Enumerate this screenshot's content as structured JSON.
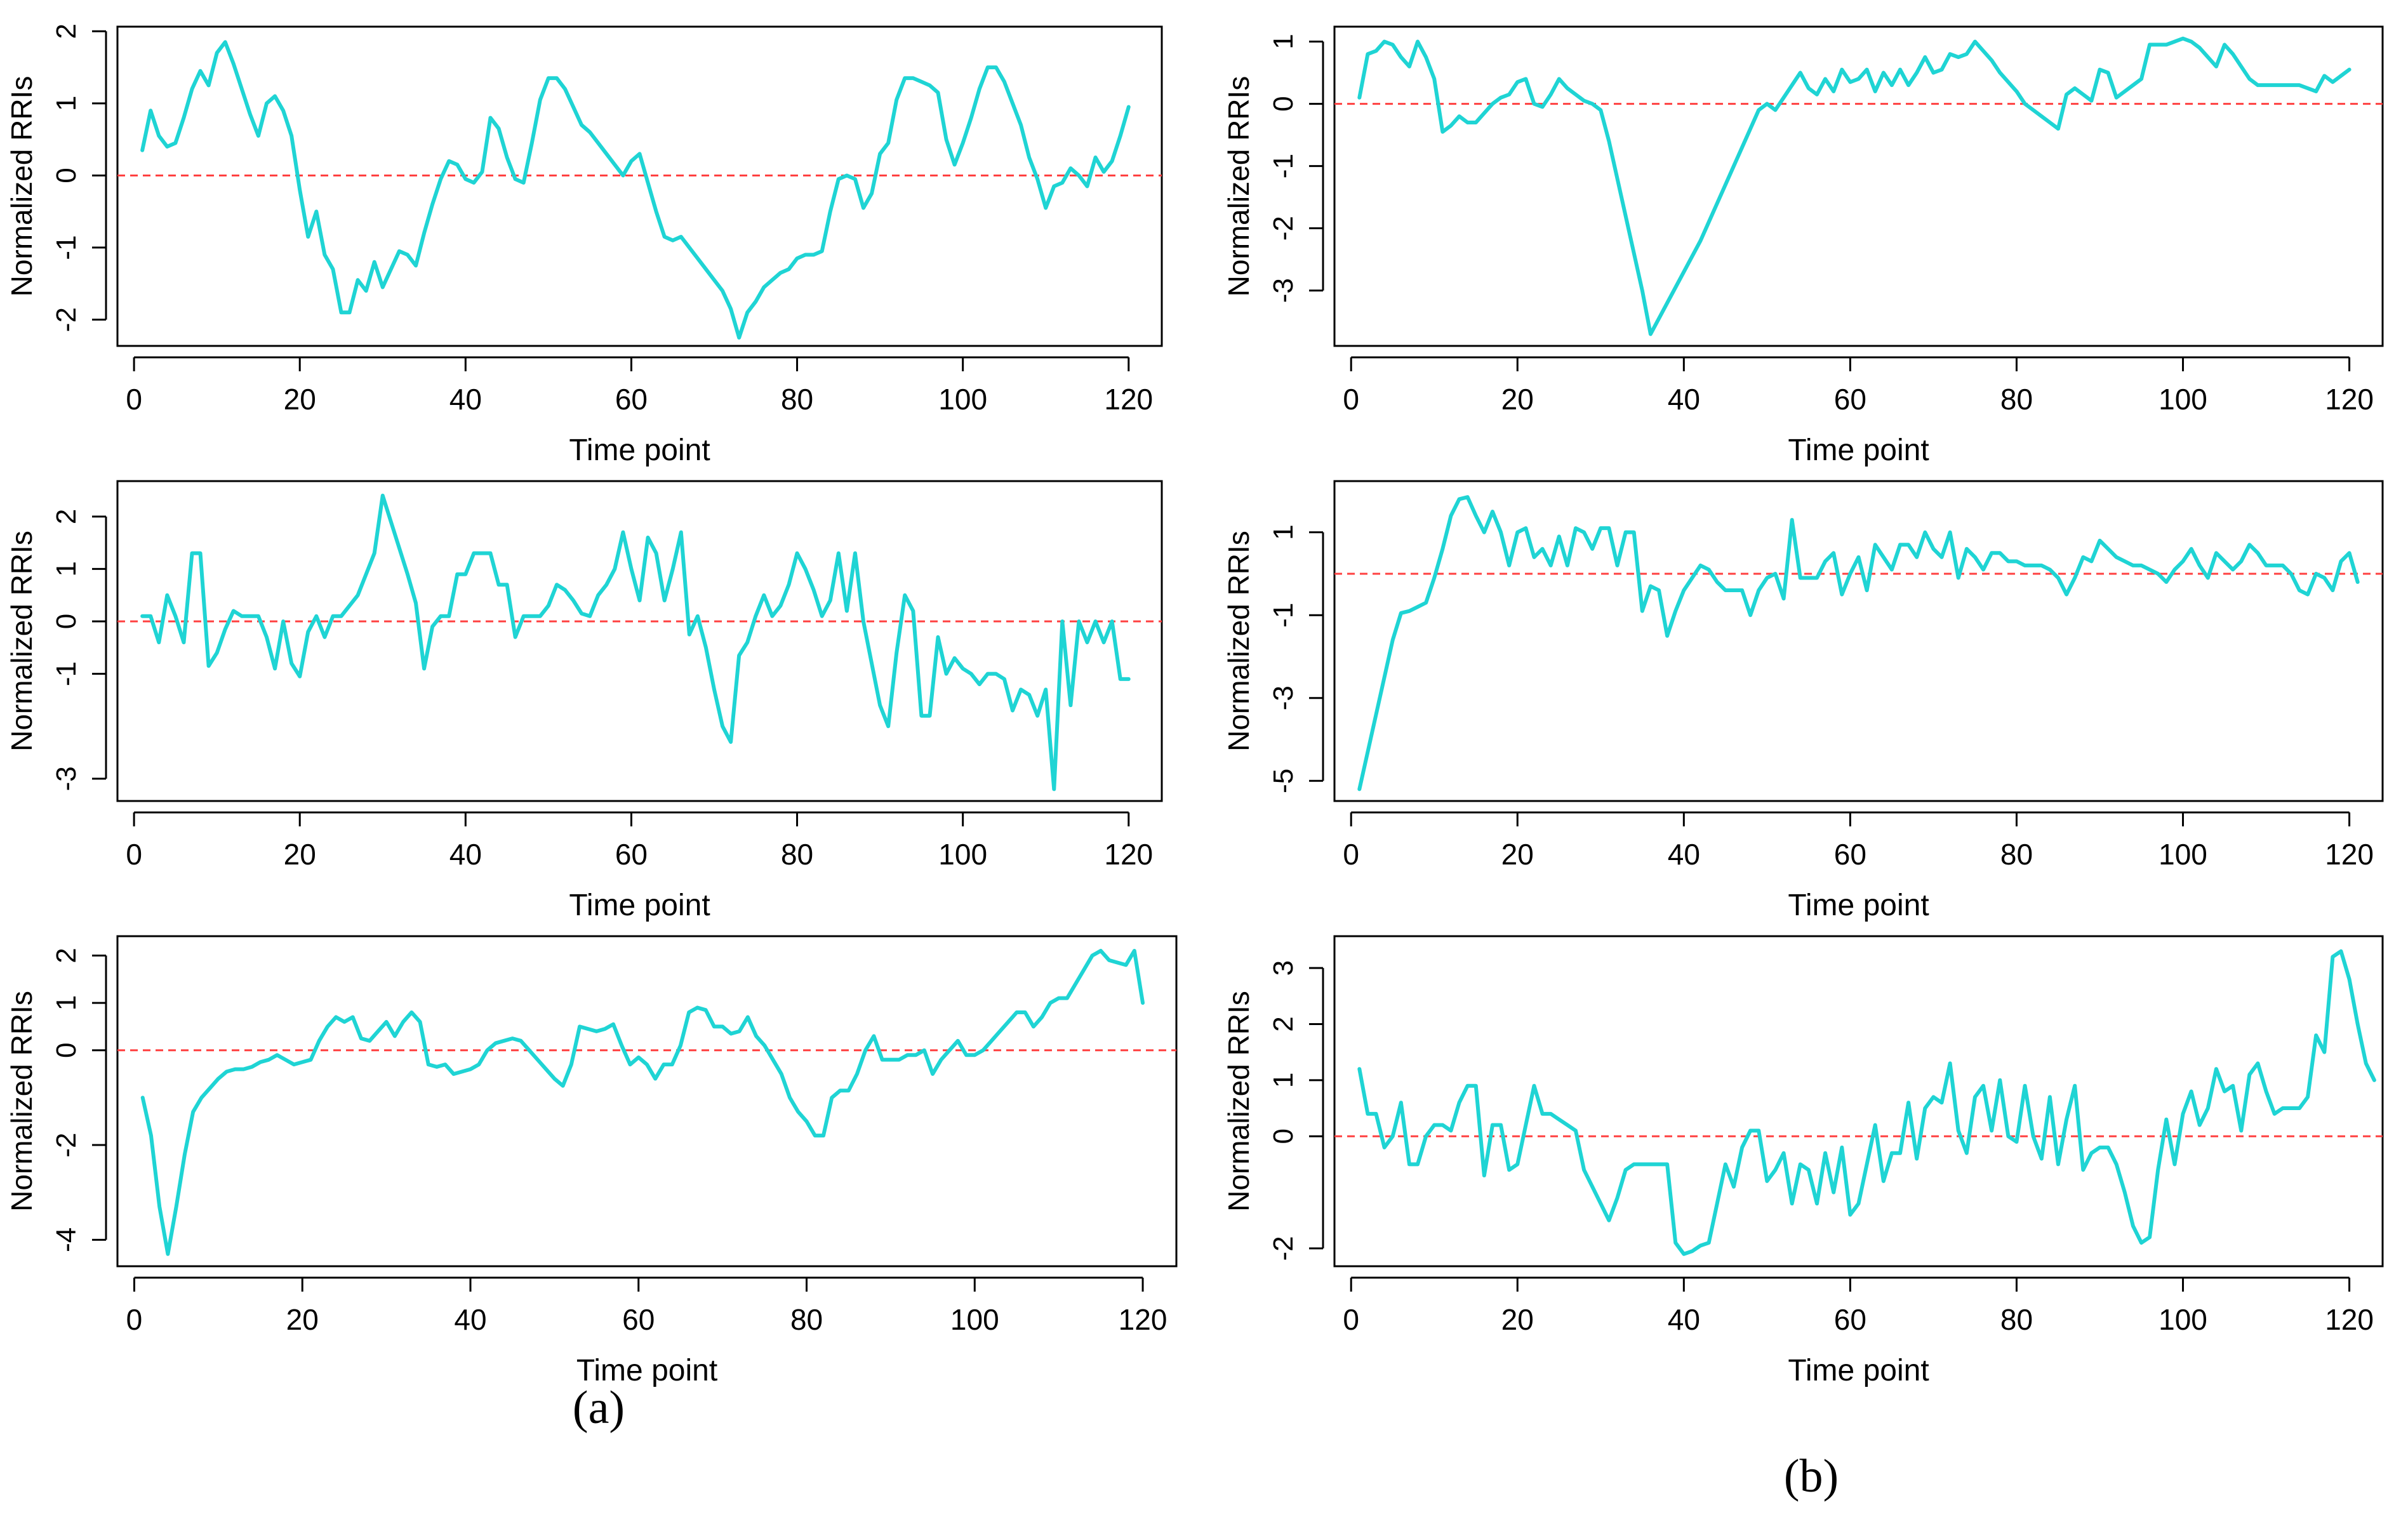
{
  "figure": {
    "label_a": "(a)",
    "label_b": "(b)",
    "series_color": "#1fd4d4",
    "zero_line_color": "#ff4040"
  },
  "chart_data": [
    {
      "id": "a1",
      "type": "line",
      "xlabel": "Time point",
      "ylabel": "Normalized RRIs",
      "xlim": [
        1,
        120
      ],
      "ylim": [
        -2.2,
        1.9
      ],
      "xticks": [
        0,
        20,
        40,
        60,
        80,
        100,
        120
      ],
      "yticks": [
        -2,
        -1,
        0,
        1,
        2
      ],
      "reference_line": 0,
      "series": [
        {
          "name": "RRI",
          "values": [
            0.35,
            0.9,
            0.55,
            0.4,
            0.45,
            0.8,
            1.2,
            1.45,
            1.25,
            1.7,
            1.85,
            1.55,
            1.2,
            0.85,
            0.55,
            1.0,
            1.1,
            0.9,
            0.55,
            -0.2,
            -0.85,
            -0.5,
            -1.1,
            -1.3,
            -1.9,
            -1.9,
            -1.45,
            -1.6,
            -1.2,
            -1.55,
            -1.3,
            -1.05,
            -1.1,
            -1.25,
            -0.8,
            -0.4,
            -0.05,
            0.2,
            0.15,
            -0.05,
            -0.1,
            0.05,
            0.8,
            0.65,
            0.25,
            -0.05,
            -0.1,
            0.45,
            1.05,
            1.35,
            1.35,
            1.2,
            0.95,
            0.7,
            0.6,
            0.45,
            0.3,
            0.15,
            0.0,
            0.2,
            0.3,
            -0.1,
            -0.5,
            -0.85,
            -0.9,
            -0.85,
            -1.0,
            -1.15,
            -1.3,
            -1.45,
            -1.6,
            -1.85,
            -2.25,
            -1.9,
            -1.75,
            -1.55,
            -1.45,
            -1.35,
            -1.3,
            -1.15,
            -1.1,
            -1.1,
            -1.05,
            -0.5,
            -0.05,
            0.0,
            -0.05,
            -0.45,
            -0.25,
            0.3,
            0.45,
            1.05,
            1.35,
            1.35,
            1.3,
            1.25,
            1.15,
            0.5,
            0.15,
            0.45,
            0.8,
            1.2,
            1.5,
            1.5,
            1.3,
            1.0,
            0.7,
            0.25,
            -0.05,
            -0.45,
            -0.15,
            -0.1,
            0.1,
            0.0,
            -0.15,
            0.25,
            0.05,
            0.2,
            0.55,
            0.95
          ]
        }
      ]
    },
    {
      "id": "b1",
      "type": "line",
      "xlabel": "Time point",
      "ylabel": "Normalized RRIs",
      "xlim": [
        1,
        120
      ],
      "ylim": [
        -3.7,
        1.05
      ],
      "xticks": [
        0,
        20,
        40,
        60,
        80,
        100,
        120
      ],
      "yticks": [
        -3,
        -2,
        -1,
        0,
        1
      ],
      "reference_line": 0,
      "series": [
        {
          "name": "RRI",
          "values": [
            0.1,
            0.8,
            0.85,
            1.0,
            0.95,
            0.75,
            0.6,
            1.0,
            0.75,
            0.4,
            -0.45,
            -0.35,
            -0.2,
            -0.3,
            -0.3,
            -0.15,
            0.0,
            0.1,
            0.15,
            0.35,
            0.4,
            0.0,
            -0.05,
            0.15,
            0.4,
            0.25,
            0.15,
            0.05,
            0.0,
            -0.1,
            -0.6,
            -1.2,
            -1.8,
            -2.4,
            -3.0,
            -3.7,
            -3.45,
            -3.2,
            -2.95,
            -2.7,
            -2.45,
            -2.2,
            -1.9,
            -1.6,
            -1.3,
            -1.0,
            -0.7,
            -0.4,
            -0.1,
            0.0,
            -0.1,
            0.1,
            0.3,
            0.5,
            0.25,
            0.15,
            0.4,
            0.2,
            0.55,
            0.35,
            0.4,
            0.55,
            0.2,
            0.5,
            0.3,
            0.55,
            0.3,
            0.5,
            0.75,
            0.5,
            0.55,
            0.8,
            0.75,
            0.8,
            1.0,
            0.85,
            0.7,
            0.5,
            0.35,
            0.2,
            0.0,
            -0.1,
            -0.2,
            -0.3,
            -0.4,
            0.15,
            0.25,
            0.15,
            0.05,
            0.55,
            0.5,
            0.1,
            0.2,
            0.3,
            0.4,
            0.95,
            0.95,
            0.95,
            1.0,
            1.05,
            1.0,
            0.9,
            0.75,
            0.6,
            0.95,
            0.8,
            0.6,
            0.4,
            0.3,
            0.3,
            0.3,
            0.3,
            0.3,
            0.3,
            0.25,
            0.2,
            0.45,
            0.35,
            0.45,
            0.55
          ]
        }
      ]
    },
    {
      "id": "a2",
      "type": "line",
      "xlabel": "Time point",
      "ylabel": "Normalized RRIs",
      "xlim": [
        1,
        120
      ],
      "ylim": [
        -3.2,
        2.45
      ],
      "xticks": [
        0,
        20,
        40,
        60,
        80,
        100,
        120
      ],
      "yticks": [
        -3,
        -1,
        0,
        1,
        2
      ],
      "reference_line": 0,
      "series": [
        {
          "name": "RRI",
          "values": [
            0.1,
            0.1,
            -0.4,
            0.5,
            0.1,
            -0.4,
            1.3,
            1.3,
            -0.85,
            -0.6,
            -0.15,
            0.2,
            0.1,
            0.1,
            0.1,
            -0.3,
            -0.9,
            0.0,
            -0.8,
            -1.05,
            -0.2,
            0.1,
            -0.3,
            0.1,
            0.1,
            0.3,
            0.5,
            0.9,
            1.3,
            2.4,
            1.9,
            1.4,
            0.9,
            0.35,
            -0.9,
            -0.1,
            0.1,
            0.1,
            0.9,
            0.9,
            1.3,
            1.3,
            1.3,
            0.7,
            0.7,
            -0.3,
            0.1,
            0.1,
            0.1,
            0.3,
            0.7,
            0.6,
            0.4,
            0.15,
            0.1,
            0.5,
            0.7,
            1.0,
            1.7,
            1.0,
            0.4,
            1.6,
            1.3,
            0.4,
            1.0,
            1.7,
            -0.25,
            0.1,
            -0.5,
            -1.3,
            -2.0,
            -2.3,
            -0.65,
            -0.4,
            0.1,
            0.5,
            0.1,
            0.3,
            0.7,
            1.3,
            1.0,
            0.6,
            0.1,
            0.4,
            1.3,
            0.2,
            1.3,
            0.0,
            -0.8,
            -1.6,
            -2.0,
            -0.6,
            0.5,
            0.2,
            -1.8,
            -1.8,
            -0.3,
            -1.0,
            -0.7,
            -0.9,
            -1.0,
            -1.2,
            -1.0,
            -1.0,
            -1.1,
            -1.7,
            -1.3,
            -1.4,
            -1.8,
            -1.3,
            -3.2,
            0.0,
            -1.6,
            0.0,
            -0.4,
            0.0,
            -0.4,
            0.0,
            -1.1,
            -1.1
          ]
        }
      ]
    },
    {
      "id": "b2",
      "type": "line",
      "xlabel": "Time point",
      "ylabel": "Normalized RRIs",
      "xlim": [
        1,
        120
      ],
      "ylim": [
        -5.2,
        1.95
      ],
      "xticks": [
        0,
        20,
        40,
        60,
        80,
        100,
        120
      ],
      "yticks": [
        -5,
        -3,
        -1,
        1
      ],
      "reference_line": 0,
      "series": [
        {
          "name": "RRI",
          "values": [
            -5.2,
            -4.3,
            -3.4,
            -2.5,
            -1.6,
            -0.95,
            -0.9,
            -0.8,
            -0.7,
            -0.1,
            0.6,
            1.4,
            1.8,
            1.85,
            1.4,
            1.0,
            1.5,
            1.0,
            0.2,
            1.0,
            1.1,
            0.4,
            0.6,
            0.2,
            0.9,
            0.2,
            1.1,
            1.0,
            0.6,
            1.1,
            1.1,
            0.2,
            1.0,
            1.0,
            -0.9,
            -0.3,
            -0.4,
            -1.5,
            -0.9,
            -0.4,
            -0.1,
            0.2,
            0.1,
            -0.2,
            -0.4,
            -0.4,
            -0.4,
            -1.0,
            -0.4,
            -0.1,
            0.0,
            -0.6,
            1.3,
            -0.1,
            -0.1,
            -0.1,
            0.3,
            0.5,
            -0.5,
            0.0,
            0.4,
            -0.4,
            0.7,
            0.4,
            0.1,
            0.7,
            0.7,
            0.4,
            1.0,
            0.6,
            0.4,
            1.0,
            -0.1,
            0.6,
            0.4,
            0.1,
            0.5,
            0.5,
            0.3,
            0.3,
            0.2,
            0.2,
            0.2,
            0.1,
            -0.1,
            -0.5,
            -0.1,
            0.4,
            0.3,
            0.8,
            0.6,
            0.4,
            0.3,
            0.2,
            0.2,
            0.1,
            0.0,
            -0.2,
            0.1,
            0.3,
            0.6,
            0.2,
            -0.1,
            0.5,
            0.3,
            0.1,
            0.3,
            0.7,
            0.5,
            0.2,
            0.2,
            0.2,
            0.0,
            -0.4,
            -0.5,
            0.0,
            -0.1,
            -0.4,
            0.3,
            0.5,
            -0.2
          ]
        }
      ]
    },
    {
      "id": "a3",
      "type": "line",
      "xlabel": "Time point",
      "ylabel": "Normalized RRIs",
      "xlim": [
        1,
        120
      ],
      "ylim": [
        -4.3,
        2.15
      ],
      "xticks": [
        0,
        20,
        40,
        60,
        80,
        100,
        120
      ],
      "yticks": [
        -4,
        -2,
        0,
        1,
        2
      ],
      "reference_line": 0,
      "series": [
        {
          "name": "RRI",
          "values": [
            -1.0,
            -1.8,
            -3.3,
            -4.3,
            -3.3,
            -2.2,
            -1.3,
            -1.0,
            -0.8,
            -0.6,
            -0.45,
            -0.4,
            -0.4,
            -0.35,
            -0.25,
            -0.2,
            -0.1,
            -0.2,
            -0.3,
            -0.25,
            -0.2,
            0.2,
            0.5,
            0.7,
            0.6,
            0.7,
            0.25,
            0.2,
            0.4,
            0.6,
            0.3,
            0.6,
            0.8,
            0.6,
            -0.3,
            -0.35,
            -0.3,
            -0.5,
            -0.45,
            -0.4,
            -0.3,
            0.0,
            0.15,
            0.2,
            0.25,
            0.2,
            0.0,
            -0.2,
            -0.4,
            -0.6,
            -0.75,
            -0.3,
            0.5,
            0.45,
            0.4,
            0.45,
            0.55,
            0.1,
            -0.3,
            -0.15,
            -0.3,
            -0.6,
            -0.3,
            -0.3,
            0.1,
            0.8,
            0.9,
            0.85,
            0.5,
            0.5,
            0.35,
            0.4,
            0.7,
            0.3,
            0.1,
            -0.2,
            -0.5,
            -1.0,
            -1.3,
            -1.5,
            -1.8,
            -1.8,
            -1.0,
            -0.85,
            -0.85,
            -0.5,
            0.0,
            0.3,
            -0.2,
            -0.2,
            -0.2,
            -0.1,
            -0.1,
            0.0,
            -0.5,
            -0.2,
            0.0,
            0.2,
            -0.1,
            -0.1,
            0.0,
            0.2,
            0.4,
            0.6,
            0.8,
            0.8,
            0.5,
            0.7,
            1.0,
            1.1,
            1.1,
            1.4,
            1.7,
            2.0,
            2.1,
            1.9,
            1.85,
            1.8,
            2.1,
            1.0
          ]
        }
      ]
    },
    {
      "id": "b3",
      "type": "line",
      "xlabel": "Time point",
      "ylabel": "Normalized RRIs",
      "xlim": [
        1,
        120
      ],
      "ylim": [
        -2.1,
        3.35
      ],
      "xticks": [
        0,
        20,
        40,
        60,
        80,
        100,
        120
      ],
      "yticks": [
        -2,
        0,
        1,
        2,
        3
      ],
      "reference_line": 0,
      "series": [
        {
          "name": "RRI",
          "values": [
            1.2,
            0.4,
            0.4,
            -0.2,
            0.0,
            0.6,
            -0.5,
            -0.5,
            0.0,
            0.2,
            0.2,
            0.1,
            0.6,
            0.9,
            0.9,
            -0.7,
            0.2,
            0.2,
            -0.6,
            -0.5,
            0.2,
            0.9,
            0.4,
            0.4,
            0.3,
            0.2,
            0.1,
            -0.6,
            -0.9,
            -1.2,
            -1.5,
            -1.1,
            -0.6,
            -0.5,
            -0.5,
            -0.5,
            -0.5,
            -0.5,
            -1.9,
            -2.1,
            -2.05,
            -1.95,
            -1.9,
            -1.2,
            -0.5,
            -0.9,
            -0.2,
            0.1,
            0.1,
            -0.8,
            -0.6,
            -0.3,
            -1.2,
            -0.5,
            -0.6,
            -1.2,
            -0.3,
            -1.0,
            -0.2,
            -1.4,
            -1.2,
            -0.5,
            0.2,
            -0.8,
            -0.3,
            -0.3,
            0.6,
            -0.4,
            0.5,
            0.7,
            0.6,
            1.3,
            0.1,
            -0.3,
            0.7,
            0.9,
            0.1,
            1.0,
            0.0,
            -0.1,
            0.9,
            0.0,
            -0.4,
            0.7,
            -0.5,
            0.3,
            0.9,
            -0.6,
            -0.3,
            -0.2,
            -0.2,
            -0.5,
            -1.0,
            -1.6,
            -1.9,
            -1.8,
            -0.6,
            0.3,
            -0.5,
            0.4,
            0.8,
            0.2,
            0.5,
            1.2,
            0.8,
            0.9,
            0.1,
            1.1,
            1.3,
            0.8,
            0.4,
            0.5,
            0.5,
            0.5,
            0.7,
            1.8,
            1.5,
            3.2,
            3.3,
            2.8,
            2.0,
            1.3,
            1.0
          ]
        }
      ]
    }
  ]
}
